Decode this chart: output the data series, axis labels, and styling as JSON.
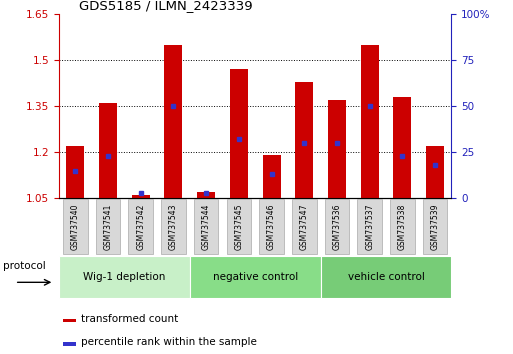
{
  "title": "GDS5185 / ILMN_2423339",
  "samples": [
    "GSM737540",
    "GSM737541",
    "GSM737542",
    "GSM737543",
    "GSM737544",
    "GSM737545",
    "GSM737546",
    "GSM737547",
    "GSM737536",
    "GSM737537",
    "GSM737538",
    "GSM737539"
  ],
  "transformed_counts": [
    1.22,
    1.36,
    1.06,
    1.55,
    1.07,
    1.47,
    1.19,
    1.43,
    1.37,
    1.55,
    1.38,
    1.22
  ],
  "percentile_ranks": [
    15,
    23,
    3,
    50,
    3,
    32,
    13,
    30,
    30,
    50,
    23,
    18
  ],
  "groups": [
    {
      "label": "Wig-1 depletion",
      "start": 0,
      "end": 4
    },
    {
      "label": "negative control",
      "start": 4,
      "end": 8
    },
    {
      "label": "vehicle control",
      "start": 8,
      "end": 12
    }
  ],
  "ylim_left": [
    1.05,
    1.65
  ],
  "ylim_right": [
    0,
    100
  ],
  "yticks_left": [
    1.05,
    1.2,
    1.35,
    1.5,
    1.65
  ],
  "yticks_right": [
    0,
    25,
    50,
    75,
    100
  ],
  "bar_color": "#cc0000",
  "blue_color": "#3333cc",
  "bar_width": 0.55,
  "base_value": 1.05,
  "group_colors": [
    "#c8f0c8",
    "#88dd88",
    "#77cc77"
  ],
  "tick_label_color": "#cc0000",
  "right_tick_color": "#2222bb",
  "protocol_label": "protocol",
  "legend_red": "transformed count",
  "legend_blue": "percentile rank within the sample"
}
